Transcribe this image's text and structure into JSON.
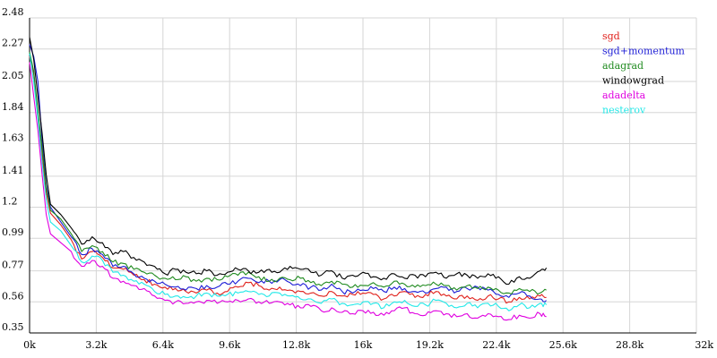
{
  "chart_data": {
    "type": "line",
    "title": "",
    "xlabel": "",
    "ylabel": "",
    "xlim": [
      0,
      32000
    ],
    "ylim": [
      0.35,
      2.48
    ],
    "x_ticks": [
      0,
      3200,
      6400,
      9600,
      12800,
      16000,
      19200,
      22400,
      25600,
      28800,
      32000
    ],
    "x_tick_labels": [
      "0k",
      "3.2k",
      "6.4k",
      "9.6k",
      "12.8k",
      "16k",
      "19.2k",
      "22.4k",
      "25.6k",
      "28.8k",
      "32k"
    ],
    "y_ticks": [
      0.35,
      0.56,
      0.77,
      0.99,
      1.2,
      1.41,
      1.63,
      1.84,
      2.05,
      2.27,
      2.48
    ],
    "y_tick_labels": [
      "0.35",
      "0.56",
      "0.77",
      "0.99",
      "1.2",
      "1.41",
      "1.63",
      "1.84",
      "2.05",
      "2.27",
      "2.48"
    ],
    "grid": true,
    "legend_position": "top-right",
    "x": [
      0,
      200,
      400,
      600,
      800,
      1000,
      1500,
      2000,
      2500,
      3000,
      3500,
      4000,
      4500,
      5000,
      5500,
      6000,
      6500,
      7000,
      7500,
      8000,
      8500,
      9000,
      9500,
      10000,
      10500,
      11000,
      11500,
      12000,
      12500,
      13000,
      13500,
      14000,
      14500,
      15000,
      15500,
      16000,
      16500,
      17000,
      17500,
      18000,
      18500,
      19000,
      19500,
      20000,
      20500,
      21000,
      21500,
      22000,
      22500,
      23000,
      23500,
      24000,
      24500,
      24800
    ],
    "series": [
      {
        "name": "sgd",
        "color": "#e0201b",
        "values": [
          2.22,
          2.1,
          1.82,
          1.55,
          1.3,
          1.16,
          1.08,
          0.98,
          0.85,
          0.9,
          0.86,
          0.79,
          0.78,
          0.74,
          0.71,
          0.68,
          0.66,
          0.65,
          0.63,
          0.62,
          0.64,
          0.62,
          0.63,
          0.66,
          0.69,
          0.67,
          0.64,
          0.66,
          0.64,
          0.63,
          0.62,
          0.6,
          0.63,
          0.6,
          0.61,
          0.62,
          0.61,
          0.58,
          0.6,
          0.63,
          0.59,
          0.61,
          0.63,
          0.6,
          0.58,
          0.6,
          0.57,
          0.6,
          0.58,
          0.56,
          0.59,
          0.58,
          0.6,
          0.59
        ]
      },
      {
        "name": "sgd+momentum",
        "color": "#1c1cd6",
        "values": [
          2.3,
          2.22,
          2.05,
          1.65,
          1.35,
          1.2,
          1.1,
          1.0,
          0.88,
          0.92,
          0.88,
          0.8,
          0.8,
          0.75,
          0.72,
          0.7,
          0.68,
          0.66,
          0.64,
          0.65,
          0.67,
          0.66,
          0.68,
          0.7,
          0.72,
          0.69,
          0.7,
          0.71,
          0.69,
          0.67,
          0.66,
          0.64,
          0.68,
          0.63,
          0.62,
          0.64,
          0.65,
          0.63,
          0.66,
          0.65,
          0.63,
          0.62,
          0.65,
          0.66,
          0.63,
          0.65,
          0.66,
          0.64,
          0.61,
          0.59,
          0.62,
          0.6,
          0.58,
          0.57
        ]
      },
      {
        "name": "adagrad",
        "color": "#1e8a1e",
        "values": [
          2.25,
          2.12,
          1.85,
          1.6,
          1.33,
          1.18,
          1.12,
          1.02,
          0.9,
          0.94,
          0.9,
          0.83,
          0.82,
          0.78,
          0.76,
          0.74,
          0.72,
          0.71,
          0.73,
          0.7,
          0.72,
          0.71,
          0.73,
          0.74,
          0.76,
          0.73,
          0.7,
          0.72,
          0.71,
          0.72,
          0.69,
          0.67,
          0.7,
          0.68,
          0.66,
          0.67,
          0.69,
          0.66,
          0.7,
          0.68,
          0.66,
          0.67,
          0.68,
          0.67,
          0.64,
          0.67,
          0.65,
          0.66,
          0.64,
          0.62,
          0.65,
          0.63,
          0.62,
          0.64
        ]
      },
      {
        "name": "windowgrad",
        "color": "#000000",
        "values": [
          2.35,
          2.2,
          1.95,
          1.7,
          1.42,
          1.22,
          1.15,
          1.06,
          0.95,
          1.0,
          0.96,
          0.88,
          0.9,
          0.86,
          0.83,
          0.8,
          0.75,
          0.78,
          0.76,
          0.75,
          0.77,
          0.74,
          0.76,
          0.78,
          0.77,
          0.76,
          0.78,
          0.76,
          0.8,
          0.78,
          0.76,
          0.74,
          0.77,
          0.72,
          0.74,
          0.76,
          0.73,
          0.72,
          0.75,
          0.72,
          0.74,
          0.73,
          0.76,
          0.72,
          0.75,
          0.74,
          0.72,
          0.75,
          0.73,
          0.68,
          0.73,
          0.72,
          0.77,
          0.79
        ]
      },
      {
        "name": "adadelta",
        "color": "#e000e0",
        "values": [
          2.18,
          1.95,
          1.72,
          1.42,
          1.15,
          1.02,
          0.96,
          0.9,
          0.8,
          0.84,
          0.8,
          0.72,
          0.7,
          0.67,
          0.65,
          0.6,
          0.57,
          0.56,
          0.55,
          0.56,
          0.57,
          0.55,
          0.56,
          0.57,
          0.58,
          0.56,
          0.55,
          0.56,
          0.54,
          0.52,
          0.53,
          0.5,
          0.52,
          0.49,
          0.48,
          0.5,
          0.49,
          0.47,
          0.5,
          0.52,
          0.48,
          0.47,
          0.5,
          0.48,
          0.46,
          0.48,
          0.45,
          0.48,
          0.46,
          0.44,
          0.47,
          0.45,
          0.48,
          0.46
        ]
      },
      {
        "name": "nesterov",
        "color": "#22e8e8",
        "values": [
          2.24,
          2.05,
          1.8,
          1.5,
          1.25,
          1.1,
          1.04,
          0.94,
          0.83,
          0.87,
          0.84,
          0.76,
          0.74,
          0.7,
          0.68,
          0.63,
          0.61,
          0.6,
          0.59,
          0.6,
          0.62,
          0.6,
          0.61,
          0.62,
          0.63,
          0.61,
          0.6,
          0.62,
          0.6,
          0.58,
          0.58,
          0.55,
          0.58,
          0.55,
          0.54,
          0.56,
          0.55,
          0.52,
          0.56,
          0.57,
          0.53,
          0.54,
          0.57,
          0.55,
          0.52,
          0.55,
          0.52,
          0.55,
          0.53,
          0.5,
          0.54,
          0.52,
          0.55,
          0.54
        ]
      }
    ]
  }
}
